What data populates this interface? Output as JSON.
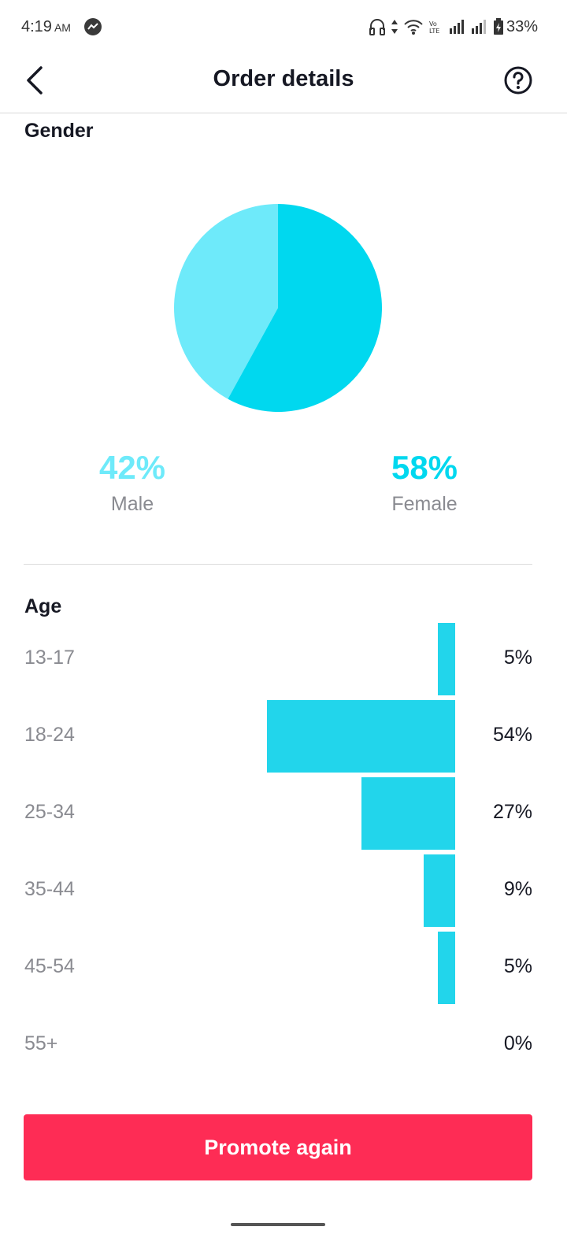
{
  "status_bar": {
    "time": "4:19",
    "ampm": "AM",
    "battery": "33%"
  },
  "header": {
    "title": "Order details",
    "back_icon": "chevron-left-icon",
    "help_icon": "help-circle-icon"
  },
  "gender": {
    "title": "Gender",
    "male": {
      "pct": "42%",
      "label": "Male",
      "value": 42,
      "color": "#6eeafa"
    },
    "female": {
      "pct": "58%",
      "label": "Female",
      "value": 58,
      "color": "#00d8ef"
    }
  },
  "age": {
    "title": "Age",
    "bar_color": "#22d5eb",
    "rows": [
      {
        "label": "13-17",
        "pct": "5%",
        "value": 5
      },
      {
        "label": "18-24",
        "pct": "54%",
        "value": 54
      },
      {
        "label": "25-34",
        "pct": "27%",
        "value": 27
      },
      {
        "label": "35-44",
        "pct": "9%",
        "value": 9
      },
      {
        "label": "45-54",
        "pct": "5%",
        "value": 5
      },
      {
        "label": "55+",
        "pct": "0%",
        "value": 0
      }
    ]
  },
  "actions": {
    "promote_label": "Promote again",
    "promote_color": "#fe2c55"
  }
}
